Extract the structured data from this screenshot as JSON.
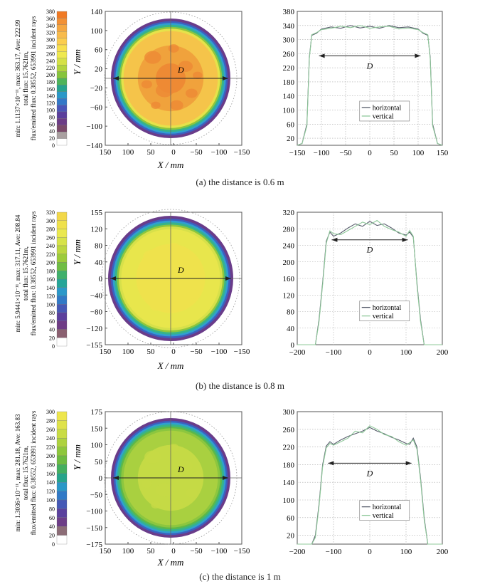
{
  "figure": {
    "panels": [
      {
        "caption": "(a) the distance is 0.6 m",
        "stats_line1": "min: 1.1137×10⁻¹¹, max: 363.17, Ave: 222.99",
        "stats_line2": "total flux: 15.7621m,",
        "stats_line3": "flux/emitted flux: 0.38552, 653991 incident rays",
        "colorbar_ticks": [
          "380",
          "360",
          "340",
          "320",
          "300",
          "280",
          "260",
          "240",
          "220",
          "200",
          "180",
          "160",
          "140",
          "120",
          "100",
          "80",
          "60",
          "40",
          "20",
          "0"
        ],
        "colorbar_colors": [
          "#f07a24",
          "#f29136",
          "#f5a742",
          "#f8bb4c",
          "#fbcd4e",
          "#f8df4d",
          "#efe94f",
          "#d5e147",
          "#b2d43e",
          "#86c43c",
          "#4fb45a",
          "#26a38e",
          "#2a98c8",
          "#3378c8",
          "#4a55b8",
          "#5a3e9c",
          "#6c3c86",
          "#7a4a6a",
          "#a9a0a0",
          "#ffffff"
        ],
        "map_ylabel": "Y / mm",
        "map_xlabel": "X / mm",
        "map_xticks": [
          "150",
          "100",
          "50",
          "0",
          "−50",
          "−100",
          "−150"
        ],
        "map_yticks": [
          "140",
          "100",
          "60",
          "20",
          "−20",
          "−60",
          "−100",
          "−140"
        ],
        "map_D": "D",
        "map_rings": [
          "#6a3c8a",
          "#3d5fbf",
          "#2f9fd0",
          "#37b38a",
          "#8cc63f",
          "#e6e24a",
          "#f5c44a",
          "#f0a23c",
          "#ee8a34"
        ],
        "line_yticks": [
          "380",
          "340",
          "300",
          "260",
          "220",
          "180",
          "140",
          "100",
          "60",
          "20"
        ],
        "line_xticks": [
          "−150",
          "−100",
          "−50",
          "0",
          "50",
          "100",
          "150"
        ],
        "legend": [
          "horizontal",
          "vertical"
        ],
        "line_D": "D"
      },
      {
        "caption": "(b) the distance is 0.8 m",
        "stats_line1": "min: 5.9441×10⁻¹¹, max: 317.11, Ave: 208.84",
        "stats_line2": "total flux: 15.7621m,",
        "stats_line3": "flux/emitted flux: 0.38552, 653991 incident rays",
        "colorbar_ticks": [
          "320",
          "300",
          "280",
          "260",
          "240",
          "220",
          "200",
          "180",
          "160",
          "140",
          "120",
          "100",
          "80",
          "60",
          "40",
          "20",
          "0"
        ],
        "colorbar_colors": [
          "#f2d84a",
          "#efe14c",
          "#eae84f",
          "#d7e349",
          "#bcd740",
          "#9ccb3b",
          "#6fbd44",
          "#3fb06b",
          "#25a598",
          "#2b98c9",
          "#3179c6",
          "#4658b5",
          "#5b3f9c",
          "#6e3c85",
          "#8a6070",
          "#ffffff"
        ],
        "map_ylabel": "Y / mm",
        "map_xlabel": "X / mm",
        "map_xticks": [
          "150",
          "100",
          "50",
          "0",
          "−50",
          "−100",
          "−150"
        ],
        "map_yticks": [
          "155",
          "120",
          "80",
          "40",
          "0",
          "−40",
          "−80",
          "−120",
          "−155"
        ],
        "map_D": "D",
        "map_rings": [
          "#6a3c8a",
          "#3d5fbf",
          "#2f9fd0",
          "#37b38a",
          "#8cc63f",
          "#d7e04a",
          "#e8e64c",
          "#efe24c"
        ],
        "line_yticks": [
          "320",
          "280",
          "240",
          "200",
          "160",
          "120",
          "80",
          "40",
          "0"
        ],
        "line_xticks": [
          "−200",
          "−100",
          "0",
          "100",
          "200"
        ],
        "legend": [
          "horizontal",
          "vertical"
        ],
        "line_D": "D"
      },
      {
        "caption": "(c) the distance is 1 m",
        "stats_line1": "min: 1.3036×10⁻¹¹, max: 281.18, Ave: 163.83",
        "stats_line2": "total flux: 15.7621m,",
        "stats_line3": "flux/emitted flux: 0.38552, 653991 incident rays",
        "colorbar_ticks": [
          "300",
          "280",
          "260",
          "240",
          "220",
          "200",
          "180",
          "160",
          "140",
          "120",
          "100",
          "80",
          "60",
          "40",
          "20",
          "0"
        ],
        "colorbar_colors": [
          "#eee64c",
          "#dfe24a",
          "#c9dc44",
          "#aed23f",
          "#8ec73c",
          "#6dbb41",
          "#44af5f",
          "#27a48b",
          "#2a98c8",
          "#317ac7",
          "#4559b6",
          "#5a409d",
          "#6d3d87",
          "#8c6d77",
          "#ffffff"
        ],
        "map_ylabel": "Y / mm",
        "map_xlabel": "X / mm",
        "map_xticks": [
          "150",
          "100",
          "50",
          "0",
          "−50",
          "−100",
          "−150"
        ],
        "map_yticks": [
          "175",
          "150",
          "100",
          "50",
          "0",
          "−50",
          "−100",
          "−150",
          "−175"
        ],
        "map_D": "D",
        "map_rings": [
          "#6a3c8a",
          "#3d5fbf",
          "#2f9fd0",
          "#37b38a",
          "#5cb84a",
          "#8cc63f",
          "#a9d040",
          "#c5da45"
        ],
        "line_yticks": [
          "300",
          "260",
          "220",
          "180",
          "140",
          "100",
          "60",
          "20"
        ],
        "line_xticks": [
          "−200",
          "−100",
          "0",
          "100",
          "200"
        ],
        "legend": [
          "horizontal",
          "vertical"
        ],
        "line_D": "D"
      }
    ]
  },
  "chart_data": [
    {
      "type": "line",
      "title": "",
      "xlabel": "",
      "ylabel": "",
      "xlim": [
        -150,
        150
      ],
      "ylim": [
        0,
        380
      ],
      "series": [
        {
          "name": "horizontal",
          "x": [
            -150,
            -140,
            -130,
            -125,
            -120,
            -110,
            -100,
            -80,
            -60,
            -40,
            -20,
            0,
            20,
            40,
            60,
            80,
            100,
            110,
            120,
            125,
            130,
            140,
            150
          ],
          "values": [
            0,
            5,
            60,
            250,
            312,
            318,
            330,
            336,
            332,
            340,
            333,
            338,
            332,
            340,
            334,
            336,
            330,
            318,
            312,
            250,
            60,
            5,
            0
          ]
        },
        {
          "name": "vertical",
          "x": [
            -150,
            -140,
            -130,
            -125,
            -120,
            -110,
            -100,
            -80,
            -60,
            -40,
            -20,
            0,
            20,
            40,
            60,
            80,
            100,
            110,
            120,
            125,
            130,
            140,
            150
          ],
          "values": [
            0,
            5,
            55,
            245,
            314,
            320,
            328,
            332,
            338,
            334,
            340,
            332,
            336,
            338,
            330,
            333,
            328,
            320,
            314,
            245,
            55,
            5,
            0
          ]
        }
      ],
      "annotation": "D"
    },
    {
      "type": "line",
      "title": "",
      "xlabel": "",
      "ylabel": "",
      "xlim": [
        -200,
        200
      ],
      "ylim": [
        0,
        320
      ],
      "series": [
        {
          "name": "horizontal",
          "x": [
            -200,
            -150,
            -140,
            -130,
            -120,
            -110,
            -100,
            -80,
            -60,
            -40,
            -20,
            0,
            20,
            40,
            60,
            80,
            100,
            110,
            120,
            130,
            140,
            150,
            200
          ],
          "values": [
            0,
            0,
            60,
            150,
            250,
            272,
            262,
            270,
            282,
            292,
            286,
            298,
            288,
            292,
            282,
            270,
            265,
            272,
            260,
            150,
            60,
            0,
            0
          ]
        },
        {
          "name": "vertical",
          "x": [
            -200,
            -150,
            -140,
            -130,
            -120,
            -110,
            -100,
            -80,
            -60,
            -40,
            -20,
            0,
            20,
            40,
            60,
            80,
            100,
            110,
            120,
            130,
            140,
            150,
            200
          ],
          "values": [
            0,
            0,
            55,
            145,
            245,
            275,
            268,
            266,
            276,
            286,
            296,
            290,
            300,
            286,
            278,
            272,
            262,
            276,
            262,
            145,
            55,
            0,
            0
          ]
        }
      ],
      "annotation": "D"
    },
    {
      "type": "line",
      "title": "",
      "xlabel": "",
      "ylabel": "",
      "xlim": [
        -200,
        200
      ],
      "ylim": [
        0,
        300
      ],
      "series": [
        {
          "name": "horizontal",
          "x": [
            -200,
            -160,
            -150,
            -140,
            -130,
            -120,
            -110,
            -100,
            -80,
            -60,
            -40,
            -20,
            0,
            20,
            40,
            60,
            80,
            100,
            110,
            120,
            130,
            140,
            150,
            160,
            200
          ],
          "values": [
            0,
            0,
            20,
            90,
            180,
            222,
            232,
            226,
            236,
            244,
            250,
            256,
            264,
            256,
            250,
            242,
            236,
            228,
            226,
            240,
            220,
            150,
            60,
            0,
            0
          ]
        },
        {
          "name": "vertical",
          "x": [
            -200,
            -160,
            -150,
            -140,
            -130,
            -120,
            -110,
            -100,
            -80,
            -60,
            -40,
            -20,
            0,
            20,
            40,
            60,
            80,
            100,
            110,
            120,
            130,
            140,
            150,
            160,
            200
          ],
          "values": [
            0,
            0,
            15,
            85,
            175,
            218,
            228,
            224,
            232,
            240,
            256,
            252,
            268,
            260,
            248,
            244,
            232,
            224,
            230,
            236,
            215,
            145,
            55,
            0,
            0
          ]
        }
      ],
      "annotation": "D"
    }
  ]
}
